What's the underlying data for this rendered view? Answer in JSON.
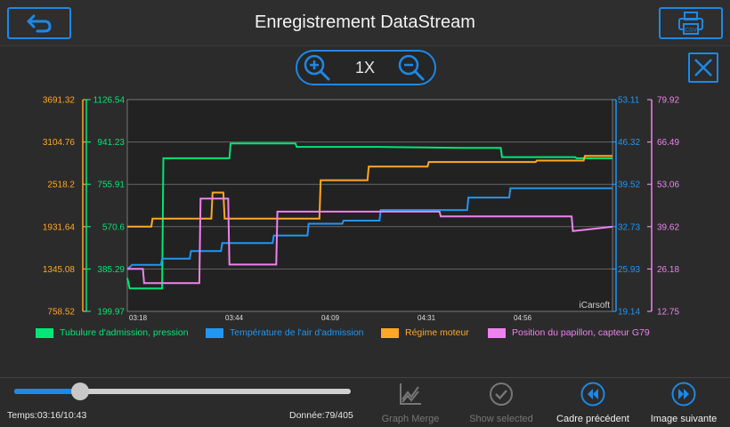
{
  "header": {
    "title": "Enregistrement DataStream",
    "back_icon": "back-arrow-icon",
    "csv_label": "CSV"
  },
  "zoom": {
    "level": "1X"
  },
  "colors": {
    "accent": "#1e88e5",
    "green": "#00e676",
    "blue": "#2196f3",
    "orange": "#ffa726",
    "pink": "#ee82ee"
  },
  "chart_data": {
    "type": "line",
    "watermark": "iCarsoft",
    "x_ticks": [
      "03:18",
      "03:44",
      "04:09",
      "04:31",
      "04:56"
    ],
    "axes": [
      {
        "side": "left-outer",
        "color": "#ffa726",
        "ticks": [
          "3691.32",
          "3104.76",
          "2518.2",
          "1931.64",
          "1345.08",
          "758.52"
        ],
        "ylim": [
          758.52,
          3691.32
        ]
      },
      {
        "side": "left-inner",
        "color": "#00e676",
        "ticks": [
          "1126.54",
          "941.23",
          "755.91",
          "570.6",
          "385.29",
          "199.97"
        ],
        "ylim": [
          199.97,
          1126.54
        ]
      },
      {
        "side": "right-inner",
        "color": "#2196f3",
        "ticks": [
          "53.11",
          "46.32",
          "39.52",
          "32.73",
          "25.93",
          "19.14"
        ],
        "ylim": [
          19.14,
          53.11
        ]
      },
      {
        "side": "right-outer",
        "color": "#ee82ee",
        "ticks": [
          "79.92",
          "66.49",
          "53.06",
          "39.62",
          "26.18",
          "12.75"
        ],
        "ylim": [
          12.75,
          79.92
        ]
      }
    ],
    "time_range": [
      "03:18",
      "05:22"
    ],
    "series": [
      {
        "name": "Tubulure d'admission, pression",
        "color": "#00e676",
        "axis": 1,
        "x": [
          0,
          2,
          7,
          13,
          14,
          29,
          30,
          43,
          44,
          85,
          86,
          104,
          105,
          140,
          141,
          186,
          187,
          206,
          207,
          280,
          281,
          311,
          312,
          373,
          374,
          404
        ],
        "y": [
          346,
          300,
          300,
          300,
          300,
          300,
          870,
          870,
          870,
          870,
          935,
          935,
          935,
          935,
          920,
          920,
          920,
          920,
          920,
          915,
          915,
          915,
          875,
          875,
          870,
          870
        ]
      },
      {
        "name": "Température de l'air d'admission",
        "color": "#2196f3",
        "axis": 2,
        "x": [
          0,
          4,
          28,
          29,
          52,
          53,
          78,
          79,
          121,
          122,
          150,
          151,
          179,
          180,
          210,
          211,
          232,
          233,
          283,
          284,
          318,
          319,
          404
        ],
        "y": [
          25.9,
          26.6,
          26.6,
          27.6,
          27.6,
          28.8,
          28.8,
          30.1,
          30.1,
          31.3,
          31.3,
          33.2,
          33.2,
          33.7,
          33.7,
          35.4,
          35.4,
          35.4,
          35.4,
          37.4,
          37.4,
          38.9,
          38.9
        ]
      },
      {
        "name": "Régime moteur",
        "color": "#ffa726",
        "axis": 0,
        "x": [
          0,
          10,
          20,
          21,
          31,
          32,
          70,
          71,
          80,
          81,
          110,
          111,
          160,
          161,
          200,
          201,
          250,
          251,
          300,
          301,
          340,
          341,
          380,
          381,
          404
        ],
        "y": [
          1931.64,
          1931.64,
          1931.64,
          2043,
          2043,
          2043,
          2043,
          2404,
          2404,
          2043,
          2043,
          2043,
          2043,
          2575,
          2575,
          2764,
          2764,
          2827,
          2827,
          2827,
          2827,
          2847,
          2847,
          2912,
          2912
        ]
      },
      {
        "name": "Position du papillon, capteur G79",
        "color": "#ee82ee",
        "axis": 3,
        "x": [
          0,
          8,
          13,
          14,
          40,
          41,
          60,
          61,
          84,
          85,
          96,
          97,
          124,
          125,
          160,
          161,
          260,
          261,
          370,
          371,
          404
        ],
        "y": [
          26.2,
          26.2,
          26.2,
          21.7,
          21.7,
          21.7,
          21.7,
          48.5,
          48.5,
          27.6,
          27.6,
          27.6,
          27.6,
          44.4,
          44.4,
          44.4,
          44.4,
          42.9,
          42.9,
          38.2,
          39.6
        ]
      }
    ]
  },
  "legend": [
    {
      "label": "Tubulure d'admission, pression",
      "color": "#00e676"
    },
    {
      "label": "Température de l'air d'admission",
      "color": "#2196f3"
    },
    {
      "label": "Régime moteur",
      "color": "#ffa726"
    },
    {
      "label": "Position du papillon, capteur G79",
      "color": "#ee82ee"
    }
  ],
  "playback": {
    "progress": 0.195,
    "time_label": "Temps:03:16/10:43",
    "data_label": "Donnée:79/405"
  },
  "actions": {
    "graph_merge": "Graph Merge",
    "show_selected": "Show selected",
    "prev_frame": "Cadre précédent",
    "next_image": "Image suivante"
  }
}
